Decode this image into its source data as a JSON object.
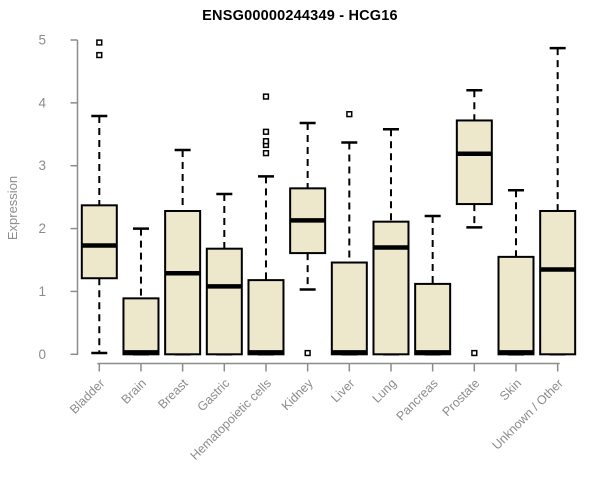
{
  "title": "ENSG00000244349 - HCG16",
  "colors": {
    "box_fill": "#EDE7CB",
    "box_border": "#000000",
    "median": "#000000",
    "whisker": "#000000",
    "outlier_stroke": "#000000",
    "axis": "#8C8C8C",
    "tick_label": "#8C8C8C",
    "title_color": "#000000",
    "background": "#FFFFFF"
  },
  "chart_data": {
    "type": "boxplot",
    "title": "ENSG00000244349 - HCG16",
    "xlabel": "",
    "ylabel": "Expression",
    "ylim": [
      0,
      5
    ],
    "y_ticks": [
      0,
      1,
      2,
      3,
      4,
      5
    ],
    "y_tick_labels": [
      "0",
      "1",
      "2",
      "3",
      "4",
      "5"
    ],
    "grid": false,
    "legend": "none",
    "categories": [
      "Bladder",
      "Brain",
      "Breast",
      "Gastric",
      "Hematopoietic cells",
      "Kidney",
      "Liver",
      "Lung",
      "Pancreas",
      "Prostate",
      "Skin",
      "Unknown / Other"
    ],
    "boxes": [
      {
        "label": "Bladder",
        "whisker_low": 0.02,
        "q1": 1.21,
        "median": 1.73,
        "q3": 2.37,
        "whisker_high": 3.79,
        "outliers": [
          4.76,
          4.96
        ]
      },
      {
        "label": "Brain",
        "whisker_low": 0.0,
        "q1": 0.0,
        "median": 0.03,
        "q3": 0.89,
        "whisker_high": 2.0,
        "outliers": []
      },
      {
        "label": "Breast",
        "whisker_low": 0.0,
        "q1": 0.0,
        "median": 1.29,
        "q3": 2.28,
        "whisker_high": 3.25,
        "outliers": []
      },
      {
        "label": "Gastric",
        "whisker_low": 0.0,
        "q1": 0.0,
        "median": 1.08,
        "q3": 1.68,
        "whisker_high": 2.55,
        "outliers": []
      },
      {
        "label": "Hematopoietic cells",
        "whisker_low": 0.0,
        "q1": 0.0,
        "median": 0.03,
        "q3": 1.18,
        "whisker_high": 2.83,
        "outliers": [
          3.2,
          3.33,
          3.39,
          3.54,
          4.1
        ]
      },
      {
        "label": "Kidney",
        "whisker_low": 1.03,
        "q1": 1.61,
        "median": 2.13,
        "q3": 2.64,
        "whisker_high": 3.68,
        "outliers": [
          0.02
        ]
      },
      {
        "label": "Liver",
        "whisker_low": 0.0,
        "q1": 0.0,
        "median": 0.03,
        "q3": 1.46,
        "whisker_high": 3.37,
        "outliers": [
          3.82
        ]
      },
      {
        "label": "Lung",
        "whisker_low": 0.0,
        "q1": 0.0,
        "median": 1.7,
        "q3": 2.11,
        "whisker_high": 3.58,
        "outliers": []
      },
      {
        "label": "Pancreas",
        "whisker_low": 0.0,
        "q1": 0.0,
        "median": 0.03,
        "q3": 1.12,
        "whisker_high": 2.2,
        "outliers": []
      },
      {
        "label": "Prostate",
        "whisker_low": 2.02,
        "q1": 2.39,
        "median": 3.19,
        "q3": 3.72,
        "whisker_high": 4.2,
        "outliers": [
          0.02
        ]
      },
      {
        "label": "Skin",
        "whisker_low": 0.0,
        "q1": 0.0,
        "median": 0.03,
        "q3": 1.55,
        "whisker_high": 2.61,
        "outliers": []
      },
      {
        "label": "Unknown / Other",
        "whisker_low": 0.0,
        "q1": 0.0,
        "median": 1.35,
        "q3": 2.28,
        "whisker_high": 4.87,
        "outliers": []
      }
    ]
  }
}
